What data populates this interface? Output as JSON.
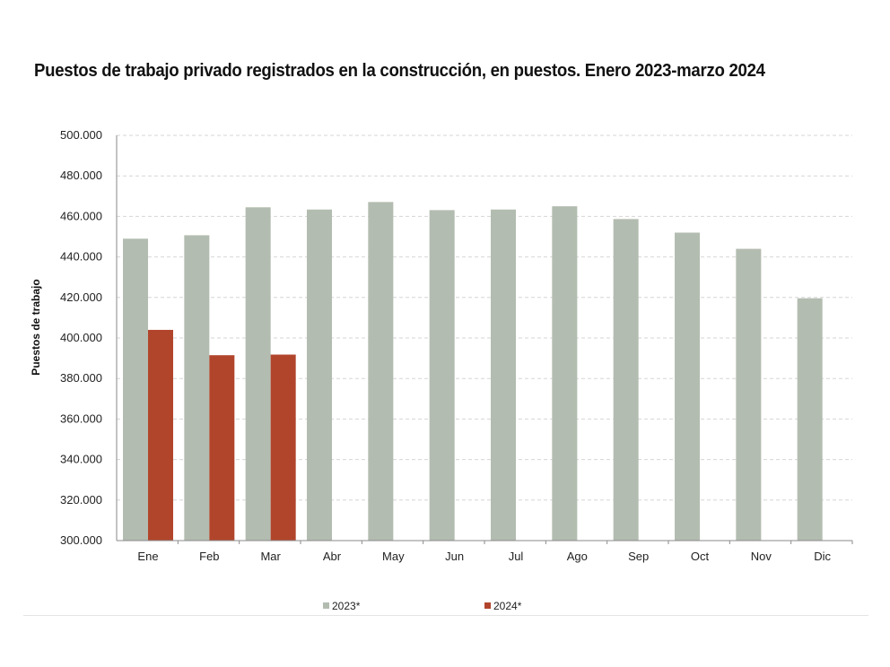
{
  "chart_data": {
    "type": "bar",
    "title": "Puestos de trabajo privado registrados en la construcción, en puestos. Enero 2023-marzo 2024",
    "xlabel": "",
    "ylabel": "Puestos de trabajo",
    "ylim": [
      300000,
      500000
    ],
    "yticks": [
      300000,
      320000,
      340000,
      360000,
      380000,
      400000,
      420000,
      440000,
      460000,
      480000,
      500000
    ],
    "ytick_labels": [
      "300.000",
      "320.000",
      "340.000",
      "360.000",
      "380.000",
      "400.000",
      "420.000",
      "440.000",
      "460.000",
      "480.000",
      "500.000"
    ],
    "grid": true,
    "legend_position": "bottom",
    "categories": [
      "Ene",
      "Feb",
      "Mar",
      "Abr",
      "May",
      "Jun",
      "Jul",
      "Ago",
      "Sep",
      "Oct",
      "Nov",
      "Dic"
    ],
    "series": [
      {
        "name": "2023*",
        "color": "#b3bcb0",
        "values": [
          449000,
          450700,
          464500,
          463400,
          467100,
          463100,
          463400,
          465000,
          458700,
          452000,
          444000,
          419600
        ]
      },
      {
        "name": "2024*",
        "color": "#b1452c",
        "values": [
          404000,
          391500,
          391800,
          null,
          null,
          null,
          null,
          null,
          null,
          null,
          null,
          null
        ]
      }
    ]
  }
}
